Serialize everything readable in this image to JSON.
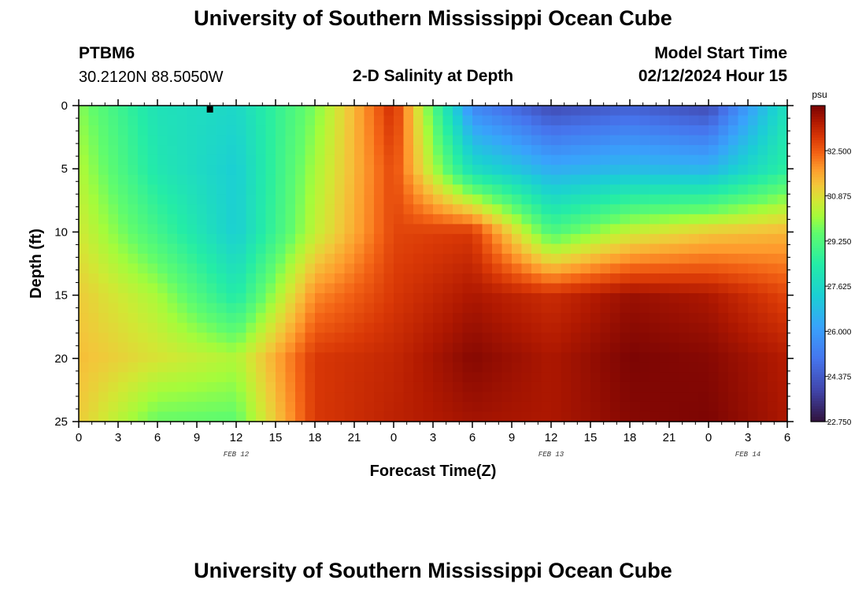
{
  "header": {
    "title": "University of Southern Mississippi Ocean Cube",
    "station_id": "PTBM6",
    "station_coords": "30.2120N  88.5050W",
    "subtitle": "2-D Salinity at Depth",
    "model_start_label": "Model Start Time",
    "model_start_value": "02/12/2024 Hour 15"
  },
  "footer": {
    "title": "University of Southern Mississippi Ocean Cube"
  },
  "chart_data": {
    "type": "heatmap",
    "title": "2-D Salinity at Depth",
    "xlabel": "Forecast Time(Z)",
    "ylabel": "Depth (ft)",
    "units": "psu",
    "x_range_hours": [
      0,
      54
    ],
    "y_range_ft": [
      0,
      25
    ],
    "y_reversed": true,
    "x_ticks": [
      {
        "hour": 0,
        "label": "0"
      },
      {
        "hour": 3,
        "label": "3"
      },
      {
        "hour": 6,
        "label": "6"
      },
      {
        "hour": 9,
        "label": "9"
      },
      {
        "hour": 12,
        "label": "12"
      },
      {
        "hour": 15,
        "label": "15"
      },
      {
        "hour": 18,
        "label": "18"
      },
      {
        "hour": 21,
        "label": "21"
      },
      {
        "hour": 24,
        "label": "0"
      },
      {
        "hour": 27,
        "label": "3"
      },
      {
        "hour": 30,
        "label": "6"
      },
      {
        "hour": 33,
        "label": "9"
      },
      {
        "hour": 36,
        "label": "12"
      },
      {
        "hour": 39,
        "label": "15"
      },
      {
        "hour": 42,
        "label": "18"
      },
      {
        "hour": 45,
        "label": "21"
      },
      {
        "hour": 48,
        "label": "0"
      },
      {
        "hour": 51,
        "label": "3"
      },
      {
        "hour": 54,
        "label": "6"
      }
    ],
    "y_ticks": [
      0,
      5,
      10,
      15,
      20,
      25
    ],
    "date_labels": [
      {
        "hour": 12,
        "label": "FEB 12"
      },
      {
        "hour": 36,
        "label": "FEB 13"
      },
      {
        "hour": 51,
        "label": "FEB 14"
      }
    ],
    "colorbar": {
      "min": 22.75,
      "max": 34.125,
      "ticks": [
        22.75,
        24.375,
        26.0,
        27.625,
        29.25,
        30.875,
        32.5
      ],
      "tick_labels": [
        "22.750",
        "24.375",
        "26.000",
        "27.625",
        "29.250",
        "30.875",
        "32.500"
      ]
    },
    "grid": {
      "hours": [
        0,
        6,
        12,
        18,
        24,
        30,
        36,
        42,
        48,
        54
      ],
      "depths_ft": [
        0,
        5,
        10,
        15,
        20,
        25
      ],
      "values": [
        [
          29.9,
          28.0,
          27.6,
          29.8,
          33.2,
          25.5,
          24.0,
          24.5,
          24.0,
          28.0
        ],
        [
          30.3,
          28.2,
          27.3,
          30.2,
          32.8,
          27.8,
          26.4,
          26.8,
          26.6,
          28.6
        ],
        [
          30.7,
          29.0,
          27.3,
          30.5,
          32.8,
          33.0,
          29.2,
          30.6,
          31.2,
          31.5
        ],
        [
          31.2,
          30.2,
          28.3,
          32.0,
          33.0,
          33.6,
          33.2,
          33.8,
          33.6,
          32.8
        ],
        [
          31.4,
          30.8,
          30.3,
          33.0,
          33.3,
          34.0,
          33.6,
          34.1,
          34.0,
          33.5
        ],
        [
          31.2,
          29.6,
          29.5,
          33.0,
          33.4,
          33.7,
          33.6,
          34.0,
          34.1,
          33.6
        ]
      ]
    },
    "marker": {
      "hour": 10,
      "depth_ft": 0.3
    }
  }
}
